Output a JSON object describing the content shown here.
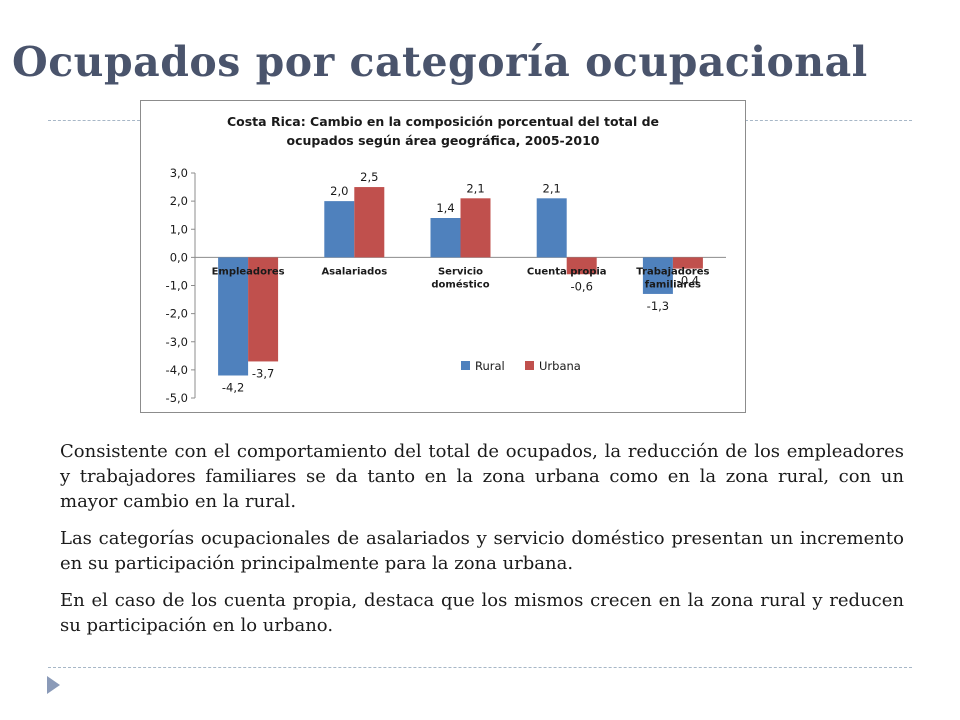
{
  "slide": {
    "title": "Ocupados por categoría ocupacional",
    "paragraphs": [
      "Consistente con el comportamiento del total de ocupados, la reducción de los empleadores y trabajadores familiares se da tanto en la zona urbana como en la zona rural, con un mayor cambio en la rural.",
      "Las categorías ocupacionales de asalariados y servicio doméstico presentan un incremento en su participación principalmente para la zona urbana.",
      "En el caso de los cuenta propia, destaca que los mismos crecen en la zona rural y reducen su participación en lo urbano."
    ],
    "nav_icon": "next-triangle-icon"
  },
  "chart_data": {
    "type": "bar",
    "title_lines": [
      "Costa Rica: Cambio en la composición porcentual del total de",
      "ocupados según área geográfica, 2005-2010"
    ],
    "categories": [
      [
        "Empleadores"
      ],
      [
        "Asalariados"
      ],
      [
        "Servicio",
        "doméstico"
      ],
      [
        "Cuenta propia"
      ],
      [
        "Trabajadores",
        "familiares"
      ]
    ],
    "series": [
      {
        "name": "Rural",
        "color": "#4f81bd",
        "values": [
          -4.2,
          2.0,
          1.4,
          2.1,
          -1.3
        ],
        "labels": [
          "-4,2",
          "2,0",
          "1,4",
          "2,1",
          "-1,3"
        ]
      },
      {
        "name": "Urbana",
        "color": "#c0504d",
        "values": [
          -3.7,
          2.5,
          2.1,
          -0.6,
          -0.4
        ],
        "labels": [
          "-3,7",
          "2,5",
          "2,1",
          "-0,6",
          "-0,4"
        ]
      }
    ],
    "yticks": [
      3,
      2,
      1,
      0,
      -1,
      -2,
      -3,
      -4,
      -5
    ],
    "ytick_labels": [
      "3,0",
      "2,0",
      "1,0",
      "0,0",
      "-1,0",
      "-2,0",
      "-3,0",
      "-4,0",
      "-5,0"
    ],
    "ylim": [
      -5,
      3
    ],
    "grid": false,
    "legend_position": "bottom-right",
    "xlabel": "",
    "ylabel": ""
  }
}
